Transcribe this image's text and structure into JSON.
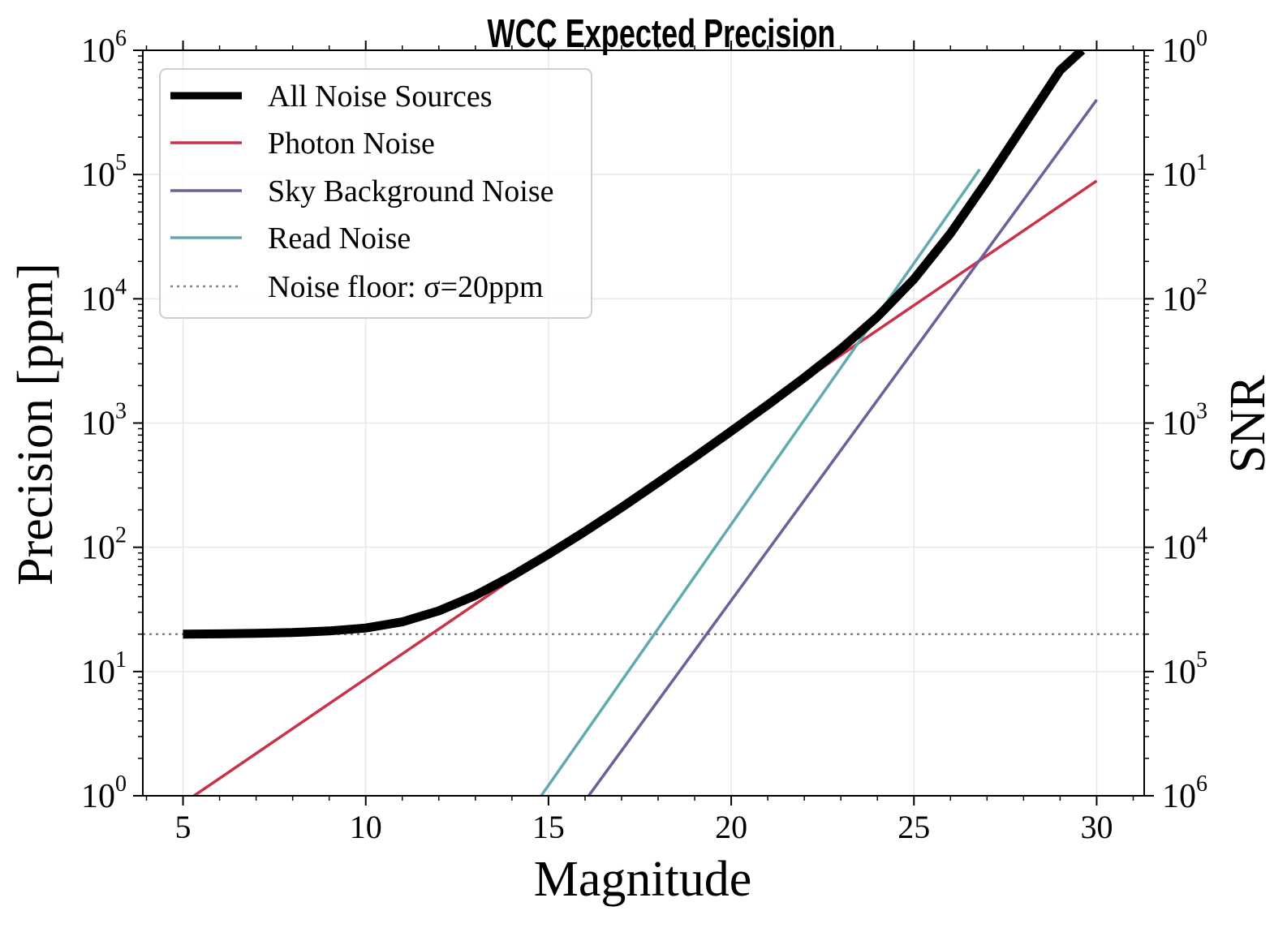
{
  "chart_data": {
    "type": "line",
    "title": "WCC Expected Precision",
    "xlabel": "Magnitude",
    "ylabel": "Precision [ppm]",
    "y2label": "SNR",
    "xlim": [
      3.9,
      31.3
    ],
    "ylim": [
      1,
      1000000
    ],
    "yscale": "log",
    "xticks": [
      5,
      10,
      15,
      20,
      25,
      30
    ],
    "xtick_labels": [
      "5",
      "10",
      "15",
      "20",
      "25",
      "30"
    ],
    "yticks": [
      1,
      10,
      100,
      1000,
      10000,
      100000,
      1000000
    ],
    "ytick_labels": [
      {
        "base": "10",
        "exp": "0"
      },
      {
        "base": "10",
        "exp": "1"
      },
      {
        "base": "10",
        "exp": "2"
      },
      {
        "base": "10",
        "exp": "3"
      },
      {
        "base": "10",
        "exp": "4"
      },
      {
        "base": "10",
        "exp": "5"
      },
      {
        "base": "10",
        "exp": "6"
      }
    ],
    "y2tick_labels": [
      {
        "base": "10",
        "exp": "6"
      },
      {
        "base": "10",
        "exp": "5"
      },
      {
        "base": "10",
        "exp": "4"
      },
      {
        "base": "10",
        "exp": "3"
      },
      {
        "base": "10",
        "exp": "2"
      },
      {
        "base": "10",
        "exp": "1"
      },
      {
        "base": "10",
        "exp": "0"
      }
    ],
    "grid": true,
    "legend_position": "top-left",
    "series": [
      {
        "name": "All Noise Sources",
        "color": "#000000",
        "style": "solid-thick",
        "x": [
          5,
          6,
          7,
          8,
          9,
          10,
          11,
          12,
          13,
          14,
          15,
          16,
          17,
          18,
          19,
          20,
          21,
          22,
          23,
          24,
          25,
          26,
          27,
          28,
          29,
          29.6
        ],
        "y": [
          20,
          20.1,
          20.3,
          20.6,
          21.2,
          22.4,
          25.1,
          30.8,
          41,
          58.8,
          87.8,
          134,
          209,
          332,
          532,
          860,
          1400,
          2320,
          3950,
          7150,
          14400,
          33600,
          89000,
          248000,
          690000,
          1000000
        ]
      },
      {
        "name": "Photon Noise",
        "color": "#c8324a",
        "style": "solid",
        "x": [
          5.3,
          30
        ],
        "y": [
          1,
          89000
        ]
      },
      {
        "name": "Sky Background Noise",
        "color": "#6b6099",
        "style": "solid",
        "x": [
          16.1,
          30
        ],
        "y": [
          1,
          400000
        ]
      },
      {
        "name": "Read Noise",
        "color": "#63aaaf",
        "style": "solid",
        "x": [
          14.8,
          26.8
        ],
        "y": [
          1,
          110000
        ]
      },
      {
        "name": "Noise floor: σ=20ppm",
        "color": "#808080",
        "style": "dotted",
        "x": [
          3.9,
          31.3
        ],
        "y": [
          20,
          20
        ]
      }
    ]
  }
}
